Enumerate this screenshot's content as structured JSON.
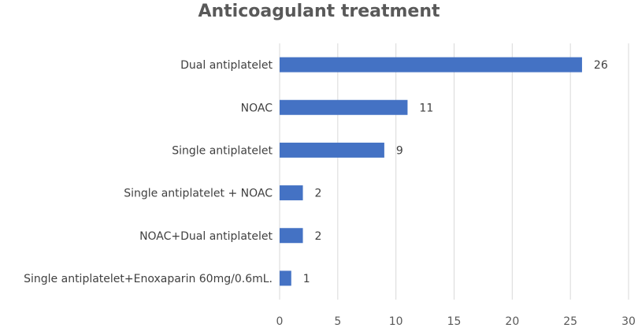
{
  "chart_data": {
    "type": "bar",
    "orientation": "horizontal",
    "title": "Anticoagulant treatment",
    "categories": [
      "Dual antiplatelet",
      "NOAC",
      "Single antiplatelet",
      "Single antiplatelet + NOAC",
      "NOAC+Dual antiplatelet",
      "Single antiplatelet+Enoxaparin 60mg/0.6mL."
    ],
    "values": [
      26,
      11,
      9,
      2,
      2,
      1
    ],
    "xlim": [
      0,
      30
    ],
    "xticks": [
      0,
      5,
      10,
      15,
      20,
      25,
      30
    ],
    "grid": "vertical",
    "legend": "none",
    "bar_color": "#4472C4",
    "grid_color": "#D9D9D9"
  }
}
